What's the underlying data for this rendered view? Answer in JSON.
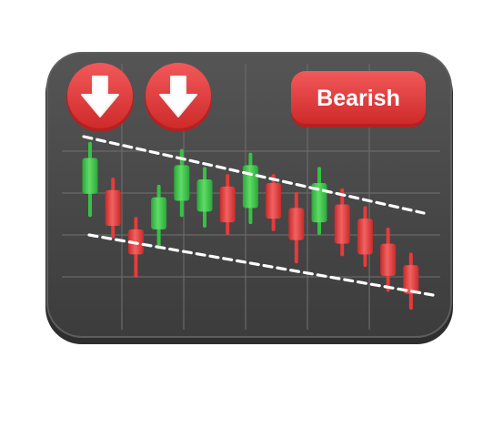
{
  "badge": {
    "label": "Bearish",
    "color": "#e83a3a"
  },
  "buttons": [
    {
      "name": "down-arrow-button-left",
      "icon": "arrow-down-icon"
    },
    {
      "name": "down-arrow-button-right",
      "icon": "arrow-down-icon"
    }
  ],
  "colors": {
    "panel": "#4a4a4a",
    "panel_border": "#5e5e5e",
    "grid": "#6a6a6a",
    "bull": "#36c244",
    "bear": "#e83a3a",
    "trendline": "#ffffff"
  },
  "candles": [
    {
      "dir": "up",
      "open": 68,
      "close": 88,
      "high": 96,
      "low": 56
    },
    {
      "dir": "down",
      "open": 70,
      "close": 50,
      "high": 76,
      "low": 44
    },
    {
      "dir": "down",
      "open": 48,
      "close": 34,
      "high": 54,
      "low": 22
    },
    {
      "dir": "up",
      "open": 48,
      "close": 66,
      "high": 72,
      "low": 38
    },
    {
      "dir": "up",
      "open": 64,
      "close": 84,
      "high": 92,
      "low": 56
    },
    {
      "dir": "up",
      "open": 58,
      "close": 76,
      "high": 82,
      "low": 50
    },
    {
      "dir": "down",
      "open": 72,
      "close": 52,
      "high": 78,
      "low": 46
    },
    {
      "dir": "up",
      "open": 60,
      "close": 84,
      "high": 90,
      "low": 52
    },
    {
      "dir": "down",
      "open": 74,
      "close": 54,
      "high": 78,
      "low": 48
    },
    {
      "dir": "down",
      "open": 60,
      "close": 42,
      "high": 68,
      "low": 30
    },
    {
      "dir": "up",
      "open": 52,
      "close": 74,
      "high": 82,
      "low": 46
    },
    {
      "dir": "down",
      "open": 62,
      "close": 40,
      "high": 70,
      "low": 34
    },
    {
      "dir": "down",
      "open": 54,
      "close": 34,
      "high": 60,
      "low": 28
    },
    {
      "dir": "down",
      "open": 40,
      "close": 22,
      "high": 48,
      "low": 14
    },
    {
      "dir": "down",
      "open": 28,
      "close": 12,
      "high": 34,
      "low": 4
    }
  ]
}
